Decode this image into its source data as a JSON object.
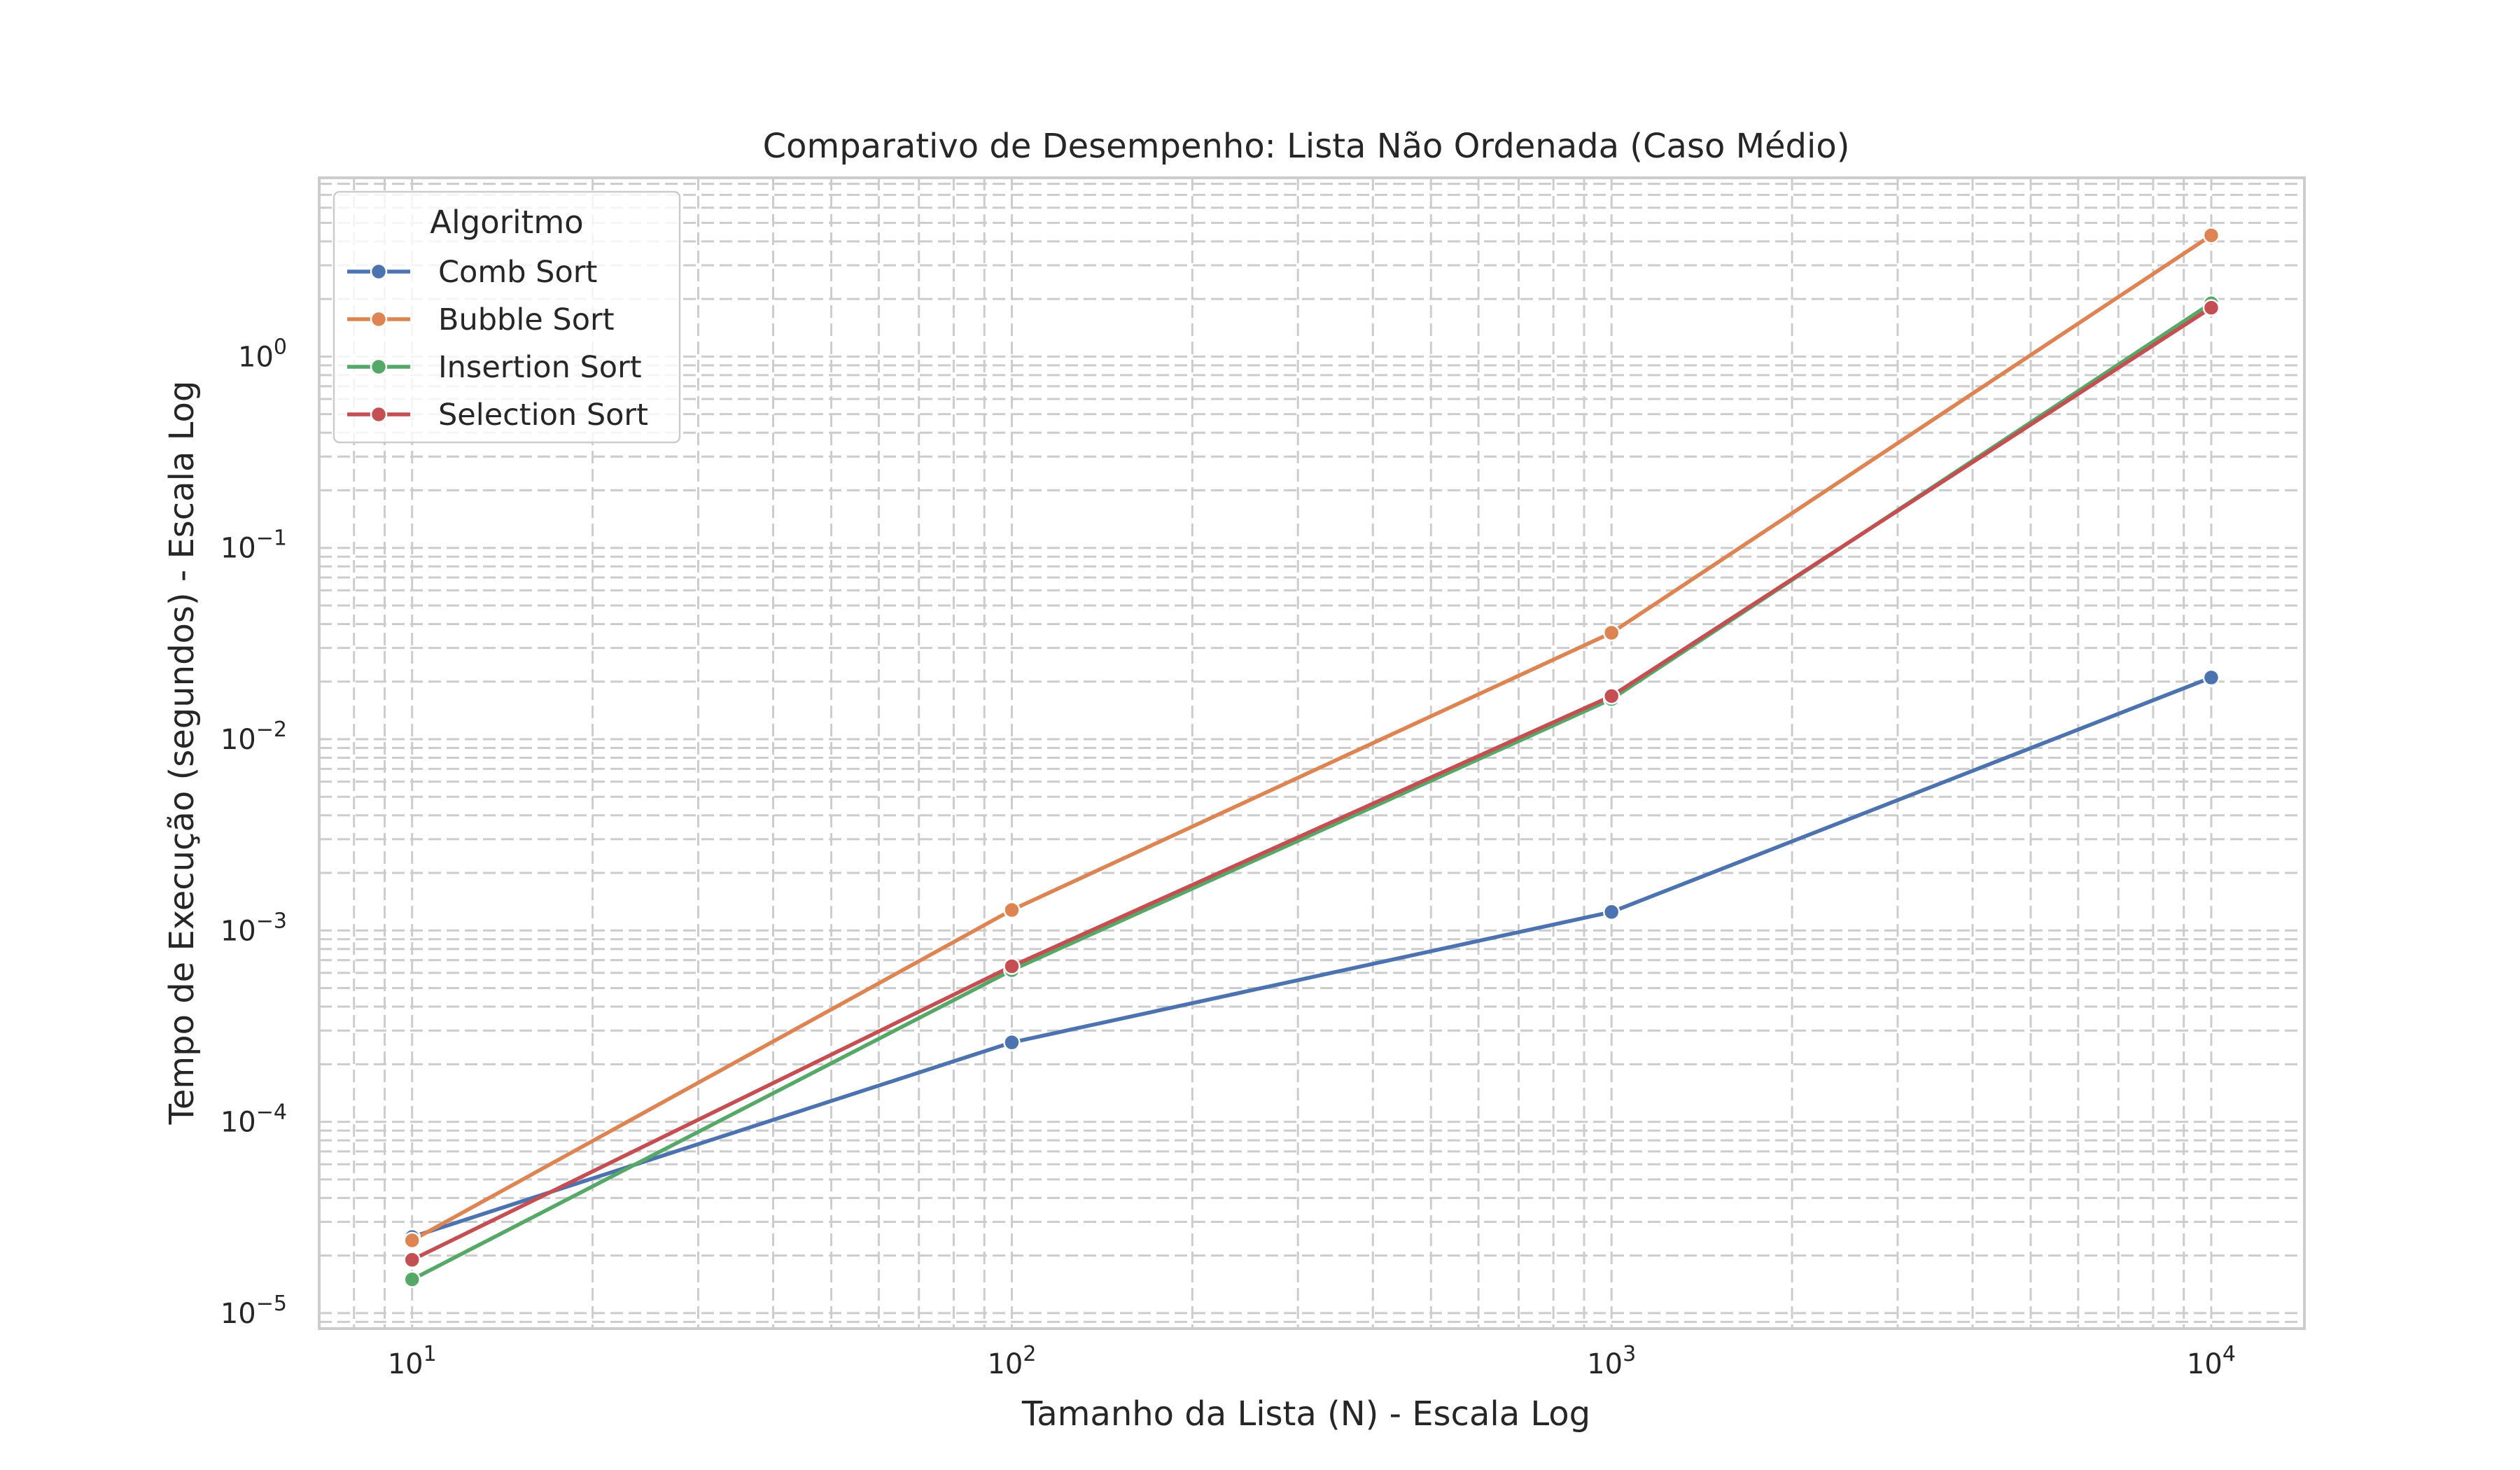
{
  "chart_data": {
    "type": "line",
    "title": "Comparativo de Desempenho: Lista Não Ordenada (Caso Médio)",
    "xlabel": "Tamanho da Lista (N) - Escala Log",
    "ylabel": "Tempo de Execução (segundos) - Escala Log",
    "xscale": "log",
    "yscale": "log",
    "xlim": [
      7.0,
      14300
    ],
    "ylim": [
      8.3e-06,
      8.6
    ],
    "grid": true,
    "legend": {
      "title": "Algoritmo",
      "placement": "top-left"
    },
    "x": [
      10,
      100,
      1000,
      10000
    ],
    "x_ticks": [
      {
        "value": 10,
        "base": "10",
        "exp": "1"
      },
      {
        "value": 100,
        "base": "10",
        "exp": "2"
      },
      {
        "value": 1000,
        "base": "10",
        "exp": "3"
      },
      {
        "value": 10000,
        "base": "10",
        "exp": "4"
      }
    ],
    "y_ticks": [
      {
        "value": 1e-05,
        "base": "10",
        "exp": "−5"
      },
      {
        "value": 0.0001,
        "base": "10",
        "exp": "−4"
      },
      {
        "value": 0.001,
        "base": "10",
        "exp": "−3"
      },
      {
        "value": 0.01,
        "base": "10",
        "exp": "−2"
      },
      {
        "value": 0.1,
        "base": "10",
        "exp": "−1"
      },
      {
        "value": 1,
        "base": "10",
        "exp": "0"
      }
    ],
    "series": [
      {
        "name": "Comb Sort",
        "color": "#4c72b0",
        "values": [
          2.5e-05,
          0.00026,
          0.00125,
          0.021
        ]
      },
      {
        "name": "Bubble Sort",
        "color": "#dd8452",
        "values": [
          2.4e-05,
          0.00128,
          0.036,
          4.3
        ]
      },
      {
        "name": "Insertion Sort",
        "color": "#55a868",
        "values": [
          1.5e-05,
          0.00062,
          0.0162,
          1.9
        ]
      },
      {
        "name": "Selection Sort",
        "color": "#c44e52",
        "values": [
          1.9e-05,
          0.00065,
          0.0168,
          1.8
        ]
      }
    ]
  }
}
